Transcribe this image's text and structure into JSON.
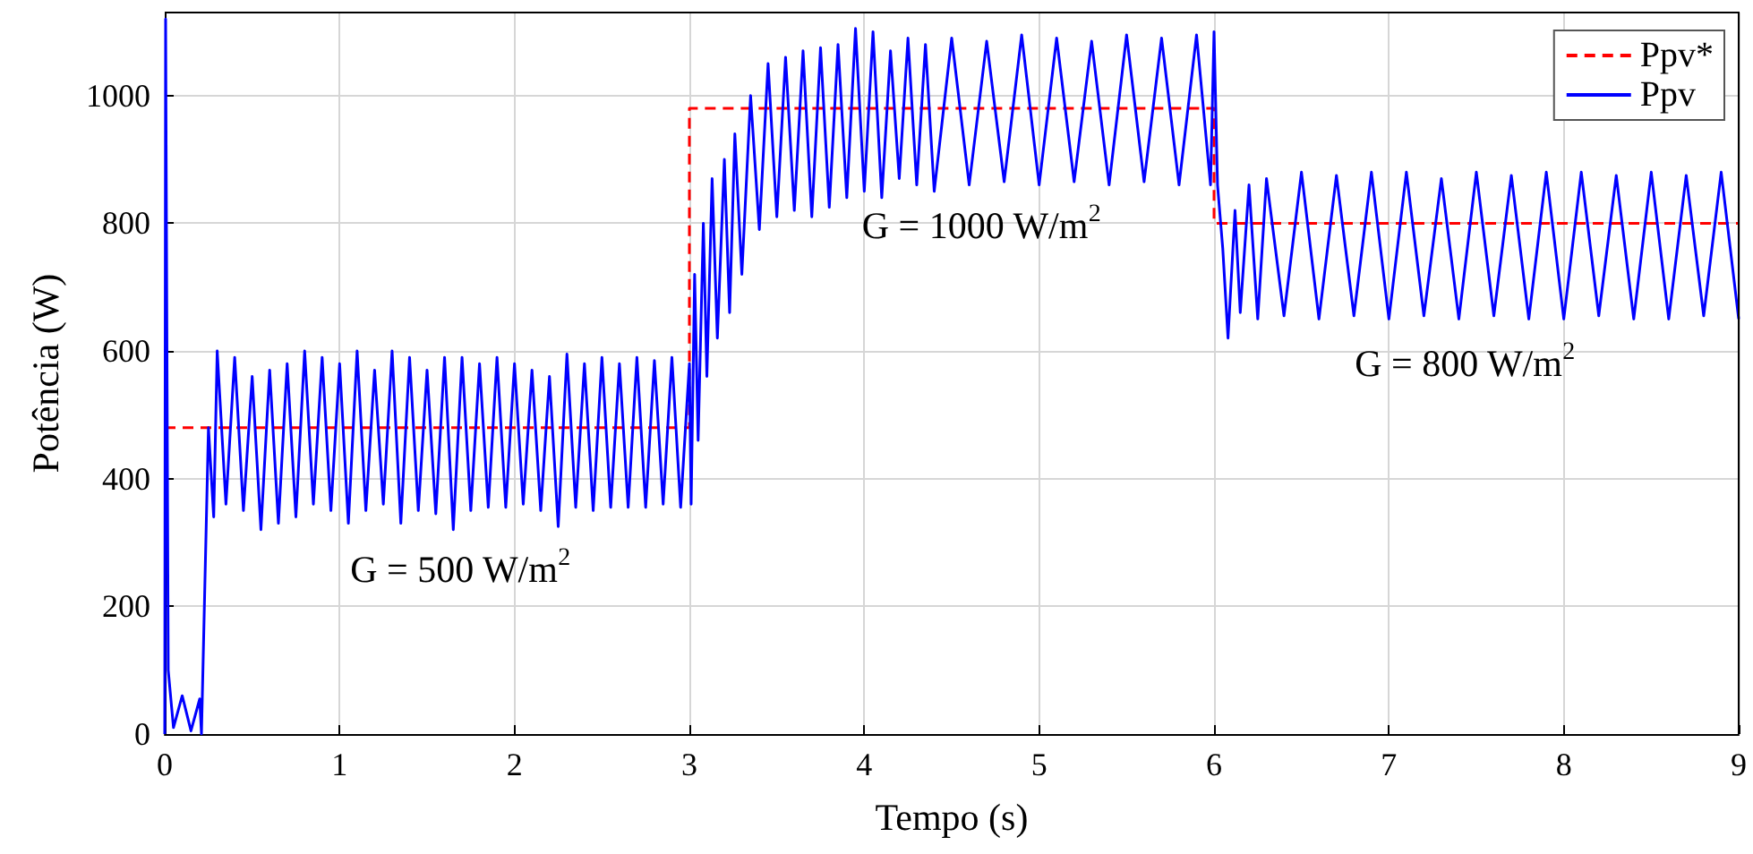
{
  "chart_data": {
    "type": "line",
    "xlabel": "Tempo (s)",
    "ylabel": "Potência (W)",
    "xlim": [
      0,
      9
    ],
    "xticks": [
      0,
      1,
      2,
      3,
      4,
      5,
      6,
      7,
      8,
      9
    ],
    "ylim": [
      0,
      1130
    ],
    "yticks": [
      0,
      200,
      400,
      600,
      800,
      1000
    ],
    "grid": true,
    "legend": "top right",
    "marker": "none",
    "annotations": [
      "G = 500 W/m$^{2}$",
      "G = 1000 W/m$^{2}$",
      "G = 800 W/m$^{2}$"
    ],
    "series": [
      {
        "name": "Ppv*",
        "color": "#ff0000",
        "line_style": "dashed",
        "x": [
          0,
          0.2,
          0.2,
          3,
          3,
          3.38,
          6,
          6,
          9
        ],
        "values": [
          480,
          480,
          480,
          480,
          980,
          980,
          980,
          800,
          800
        ]
      },
      {
        "name": "Ppv",
        "color": "#0000ff",
        "line_style": "solid",
        "x": [
          0,
          0.005,
          0.02,
          0.05,
          0.1,
          0.15,
          0.2,
          0.21,
          0.25,
          0.28,
          0.3,
          0.35,
          0.4,
          0.45,
          0.5,
          0.55,
          0.6,
          0.65,
          0.7,
          0.75,
          0.8,
          0.85,
          0.9,
          0.95,
          1.0,
          1.05,
          1.1,
          1.15,
          1.2,
          1.25,
          1.3,
          1.35,
          1.4,
          1.45,
          1.5,
          1.55,
          1.6,
          1.65,
          1.7,
          1.75,
          1.8,
          1.85,
          1.9,
          1.95,
          2.0,
          2.05,
          2.1,
          2.15,
          2.2,
          2.25,
          2.3,
          2.35,
          2.4,
          2.45,
          2.5,
          2.55,
          2.6,
          2.65,
          2.7,
          2.75,
          2.8,
          2.85,
          2.9,
          2.95,
          3.0,
          3.01,
          3.03,
          3.05,
          3.08,
          3.1,
          3.13,
          3.16,
          3.2,
          3.23,
          3.26,
          3.3,
          3.35,
          3.4,
          3.45,
          3.5,
          3.55,
          3.6,
          3.65,
          3.7,
          3.75,
          3.8,
          3.85,
          3.9,
          3.95,
          4.0,
          4.05,
          4.1,
          4.15,
          4.2,
          4.25,
          4.3,
          4.35,
          4.4,
          4.5,
          4.6,
          4.7,
          4.8,
          4.9,
          5.0,
          5.1,
          5.2,
          5.3,
          5.4,
          5.5,
          5.6,
          5.7,
          5.8,
          5.9,
          5.98,
          6.0,
          6.02,
          6.05,
          6.08,
          6.12,
          6.15,
          6.2,
          6.25,
          6.3,
          6.4,
          6.5,
          6.6,
          6.7,
          6.8,
          6.9,
          7.0,
          7.1,
          7.2,
          7.3,
          7.4,
          7.5,
          7.6,
          7.7,
          7.8,
          7.9,
          8.0,
          8.1,
          8.2,
          8.3,
          8.4,
          8.5,
          8.6,
          8.7,
          8.8,
          8.9,
          9.0
        ],
        "values": [
          0,
          1120,
          100,
          10,
          60,
          5,
          55,
          0,
          480,
          340,
          600,
          360,
          590,
          350,
          560,
          320,
          570,
          330,
          580,
          340,
          600,
          360,
          590,
          350,
          580,
          330,
          600,
          350,
          570,
          360,
          600,
          330,
          590,
          350,
          570,
          345,
          590,
          320,
          590,
          350,
          580,
          355,
          590,
          355,
          580,
          360,
          570,
          350,
          560,
          325,
          595,
          355,
          580,
          350,
          590,
          355,
          580,
          355,
          590,
          355,
          585,
          360,
          590,
          355,
          580,
          360,
          720,
          460,
          800,
          560,
          870,
          620,
          900,
          660,
          940,
          720,
          1000,
          790,
          1050,
          810,
          1060,
          820,
          1070,
          810,
          1075,
          825,
          1080,
          840,
          1105,
          850,
          1100,
          840,
          1070,
          870,
          1090,
          860,
          1080,
          850,
          1090,
          860,
          1085,
          865,
          1095,
          860,
          1090,
          865,
          1085,
          860,
          1095,
          865,
          1090,
          860,
          1095,
          860,
          1100,
          860,
          760,
          620,
          820,
          660,
          860,
          650,
          870,
          655,
          880,
          650,
          875,
          655,
          880,
          650,
          880,
          655,
          870,
          650,
          880,
          655,
          875,
          650,
          880,
          650,
          880,
          655,
          875,
          650,
          880,
          650,
          875,
          655,
          880,
          650
        ]
      }
    ]
  }
}
